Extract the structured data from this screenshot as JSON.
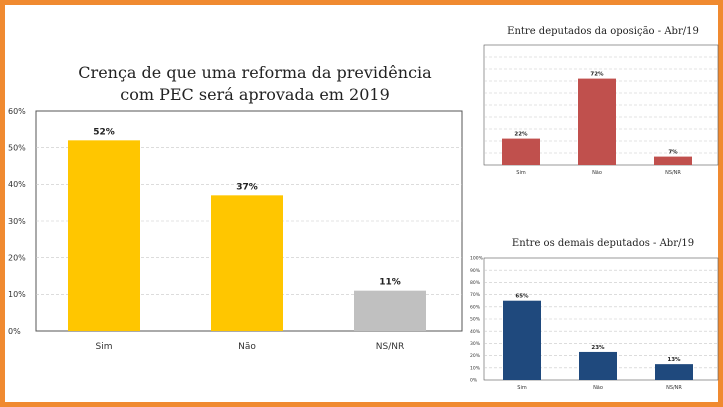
{
  "colors": {
    "frame": "#f08a30",
    "main_yes_no": "#ffc600",
    "main_nsnr": "#c0c0c0",
    "opposition": "#c0504d",
    "others": "#1f497d"
  },
  "chart_data": [
    {
      "type": "bar",
      "title_lines": [
        "Crença de que uma reforma da previdência",
        "com PEC será aprovada em 2019"
      ],
      "categories": [
        "Sim",
        "Não",
        "NS/NR"
      ],
      "values": [
        52,
        37,
        11
      ],
      "value_labels": [
        "52%",
        "37%",
        "11%"
      ],
      "colors": [
        "#ffc600",
        "#ffc600",
        "#c0c0c0"
      ],
      "yticks": [
        "0%",
        "10%",
        "20%",
        "30%",
        "40%",
        "50%",
        "60%"
      ],
      "ylim": [
        0,
        60
      ],
      "grid": true
    },
    {
      "type": "bar",
      "title": "Entre deputados da oposição - Abr/19",
      "categories": [
        "Sim",
        "Não",
        "NS/NR"
      ],
      "values": [
        22,
        72,
        7
      ],
      "value_labels": [
        "22%",
        "72%",
        "7%"
      ],
      "colors": [
        "#c0504d",
        "#c0504d",
        "#c0504d"
      ],
      "ylim": [
        0,
        100
      ],
      "grid": true
    },
    {
      "type": "bar",
      "title": "Entre os demais deputados - Abr/19",
      "categories": [
        "Sim",
        "Não",
        "NS/NR"
      ],
      "values": [
        65,
        23,
        13
      ],
      "value_labels": [
        "65%",
        "23%",
        "13%"
      ],
      "colors": [
        "#1f497d",
        "#1f497d",
        "#1f497d"
      ],
      "yticks": [
        "0%",
        "10%",
        "20%",
        "30%",
        "40%",
        "50%",
        "60%",
        "70%",
        "80%",
        "90%",
        "100%"
      ],
      "ylim": [
        0,
        100
      ],
      "grid": true
    }
  ]
}
